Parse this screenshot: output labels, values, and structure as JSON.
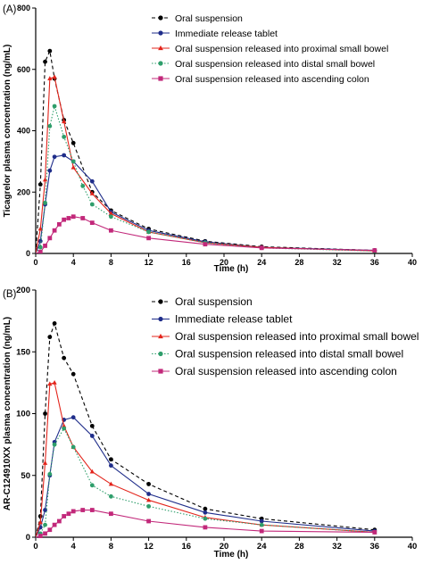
{
  "chart_data": [
    {
      "type": "line",
      "panel_label": "(A)",
      "xlabel": "Time (h)",
      "ylabel": "Ticagrelor plasma concentration (ng/mL)",
      "xlim": [
        0,
        40
      ],
      "ylim": [
        0,
        800
      ],
      "xticks": [
        0,
        4,
        8,
        12,
        16,
        20,
        24,
        28,
        32,
        36,
        40
      ],
      "yticks": [
        0,
        200,
        400,
        600,
        800
      ],
      "grid": false,
      "legend_position": "top-right",
      "series": [
        {
          "name": "Oral suspension",
          "color": "#000000",
          "marker": "circle",
          "dash": "dashed",
          "x": [
            0,
            0.5,
            1,
            1.5,
            2,
            3,
            4,
            6,
            8,
            12,
            18,
            24,
            36
          ],
          "y": [
            0,
            225,
            625,
            660,
            570,
            435,
            360,
            200,
            140,
            80,
            40,
            22,
            10
          ]
        },
        {
          "name": "Immediate release tablet",
          "color": "#1f2d8a",
          "marker": "circle",
          "dash": "solid",
          "x": [
            0,
            0.5,
            1,
            1.5,
            2,
            3,
            4,
            6,
            8,
            12,
            18,
            24,
            36
          ],
          "y": [
            0,
            40,
            160,
            270,
            315,
            320,
            300,
            235,
            135,
            75,
            38,
            20,
            10
          ]
        },
        {
          "name": "Oral suspension released into proximal small bowel",
          "color": "#e3241b",
          "marker": "triangle",
          "dash": "solid",
          "x": [
            0,
            0.5,
            1,
            1.5,
            2,
            3,
            4,
            6,
            8,
            12,
            18,
            24,
            36
          ],
          "y": [
            0,
            80,
            240,
            570,
            575,
            430,
            280,
            195,
            130,
            70,
            35,
            20,
            8
          ]
        },
        {
          "name": "Oral suspension released into distal small bowel",
          "color": "#2e9e6b",
          "marker": "circle",
          "dash": "dotted",
          "x": [
            0,
            0.5,
            1,
            1.5,
            2,
            3,
            4,
            5,
            6,
            8,
            12,
            18,
            24,
            36
          ],
          "y": [
            0,
            20,
            165,
            415,
            480,
            380,
            300,
            220,
            160,
            120,
            70,
            35,
            18,
            8
          ]
        },
        {
          "name": "Oral suspension released into ascending colon",
          "color": "#c2287a",
          "marker": "square",
          "dash": "solid",
          "x": [
            0,
            0.5,
            1,
            1.5,
            2,
            2.5,
            3,
            3.5,
            4,
            5,
            6,
            8,
            12,
            18,
            24,
            36
          ],
          "y": [
            0,
            5,
            25,
            50,
            75,
            95,
            110,
            115,
            120,
            115,
            100,
            75,
            50,
            30,
            18,
            10
          ]
        }
      ]
    },
    {
      "type": "line",
      "panel_label": "(B)",
      "xlabel": "Time (h)",
      "ylabel": "AR-C124910XX plasma concentration (ng/mL)",
      "xlim": [
        0,
        40
      ],
      "ylim": [
        0,
        200
      ],
      "xticks": [
        0,
        4,
        8,
        12,
        16,
        20,
        24,
        28,
        32,
        36,
        40
      ],
      "yticks": [
        0,
        50,
        100,
        150,
        200
      ],
      "grid": false,
      "legend_position": "top-right",
      "series": [
        {
          "name": "Oral suspension",
          "color": "#000000",
          "marker": "circle",
          "dash": "dashed",
          "x": [
            0,
            0.5,
            1,
            1.5,
            2,
            3,
            4,
            6,
            8,
            12,
            18,
            24,
            36
          ],
          "y": [
            0,
            17,
            100,
            162,
            173,
            145,
            132,
            90,
            63,
            43,
            23,
            15,
            6
          ]
        },
        {
          "name": "Immediate release tablet",
          "color": "#1f2d8a",
          "marker": "circle",
          "dash": "solid",
          "x": [
            0,
            0.5,
            1,
            1.5,
            2,
            3,
            4,
            6,
            8,
            12,
            18,
            24,
            36
          ],
          "y": [
            0,
            8,
            22,
            50,
            77,
            95,
            97,
            82,
            58,
            35,
            20,
            13,
            5
          ]
        },
        {
          "name": "Oral suspension released into proximal small bowel",
          "color": "#e3241b",
          "marker": "triangle",
          "dash": "solid",
          "x": [
            0,
            0.5,
            1,
            1.5,
            2,
            3,
            4,
            6,
            8,
            12,
            18,
            24,
            36
          ],
          "y": [
            0,
            12,
            60,
            124,
            125,
            90,
            73,
            53,
            43,
            30,
            16,
            10,
            4
          ]
        },
        {
          "name": "Oral suspension released into distal small bowel",
          "color": "#2e9e6b",
          "marker": "circle",
          "dash": "dotted",
          "x": [
            0,
            0.5,
            1,
            1.5,
            2,
            3,
            4,
            6,
            8,
            12,
            18,
            24,
            36
          ],
          "y": [
            0,
            3,
            10,
            51,
            75,
            88,
            73,
            42,
            33,
            25,
            15,
            10,
            4
          ]
        },
        {
          "name": "Oral suspension released into ascending colon",
          "color": "#c2287a",
          "marker": "square",
          "dash": "solid",
          "x": [
            0,
            0.5,
            1,
            1.5,
            2,
            2.5,
            3,
            3.5,
            4,
            5,
            6,
            8,
            12,
            18,
            24,
            36
          ],
          "y": [
            0,
            1,
            3,
            6,
            10,
            13,
            17,
            19,
            21,
            22,
            22,
            19,
            13,
            8,
            5,
            4
          ]
        }
      ]
    }
  ]
}
